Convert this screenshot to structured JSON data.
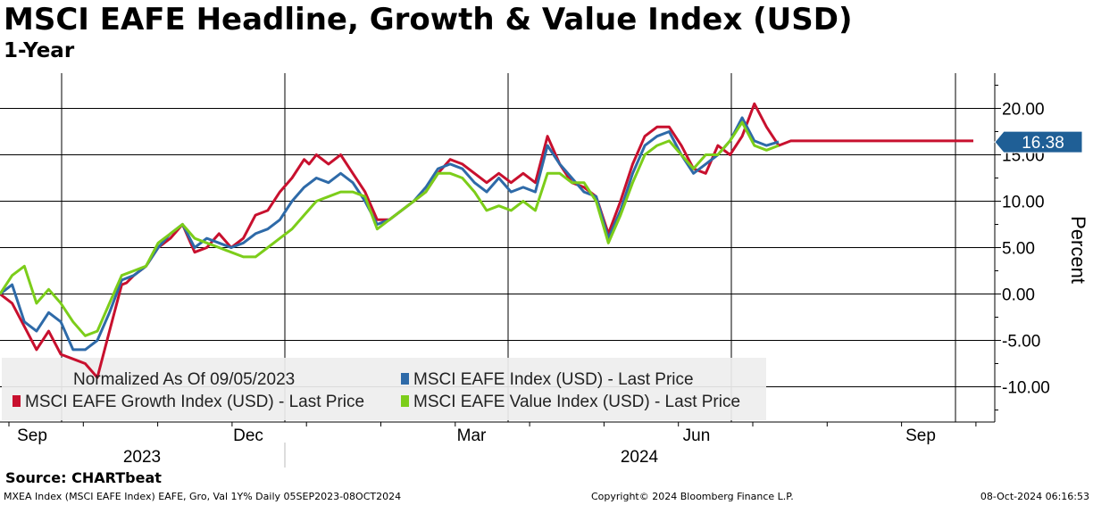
{
  "chart_data": {
    "type": "line",
    "title": "MSCI EAFE Headline, Growth & Value Index (USD)",
    "subtitle": "1-Year",
    "ylabel": "Percent",
    "ylim": [
      -13.5,
      23.5
    ],
    "yticks": [
      20,
      15,
      10,
      5,
      0,
      -5,
      -10
    ],
    "ytick_labels": [
      "20.00",
      "15.00",
      "10.00",
      "5.00",
      "0.00",
      "-5.00",
      "-10.00"
    ],
    "x_months": [
      "Sep",
      "Dec",
      "Mar",
      "Jun",
      "Sep"
    ],
    "x_years": [
      "2023",
      "2024"
    ],
    "x_range": [
      "2023-09-05",
      "2024-10-08"
    ],
    "last_value_label": "16.38",
    "legend": {
      "header": "Normalized As Of 09/05/2023",
      "placement": "bottom-left"
    },
    "series": [
      {
        "name": "MSCI EAFE Growth Index (USD) - Last Price",
        "color": "#c8102e",
        "x": [
          0,
          5,
          10,
          15,
          20,
          25,
          30,
          35,
          40,
          45,
          50,
          52,
          55,
          60,
          65,
          70,
          75,
          80,
          85,
          90,
          95,
          100,
          105,
          110,
          115,
          120,
          125,
          127,
          130,
          135,
          140,
          145,
          150,
          155,
          160,
          165,
          170,
          175,
          180,
          185,
          190,
          195,
          200,
          205,
          210,
          215,
          220,
          225,
          230,
          235,
          240,
          245,
          250,
          255,
          260,
          265,
          270,
          275,
          280,
          285,
          290,
          295,
          300,
          305,
          310,
          315,
          320,
          325,
          330,
          335,
          340,
          345,
          350,
          355,
          360,
          365,
          370,
          375,
          380,
          385,
          390,
          395,
          400
        ],
        "values": [
          0,
          -1,
          -3.5,
          -6,
          -4,
          -6.5,
          -7,
          -7.5,
          -9,
          -4,
          1,
          1.2,
          2,
          3,
          5,
          6,
          7.5,
          4.5,
          5,
          6.5,
          5,
          6,
          8.5,
          9,
          11,
          12.5,
          14.5,
          14,
          15,
          14,
          15,
          13,
          11,
          8,
          8,
          9,
          10,
          11,
          13,
          14.5,
          14,
          13,
          12,
          13,
          12,
          13,
          12,
          17,
          14,
          12,
          11.5,
          10.5,
          6.5,
          10,
          14,
          17,
          18,
          18,
          16,
          13.5,
          13,
          16,
          15,
          17,
          20.5,
          18,
          16,
          16.5,
          16.5,
          16.5,
          16.5,
          16.5,
          16.5,
          16.5,
          16.5,
          16.5,
          16.5,
          16.5,
          16.5,
          16.5,
          16.5,
          16.5,
          16.5
        ]
      },
      {
        "name": "MSCI EAFE Index (USD) - Last Price",
        "color": "#2e6aa8",
        "x": [
          0,
          5,
          10,
          15,
          20,
          25,
          30,
          35,
          40,
          45,
          50,
          55,
          60,
          65,
          70,
          75,
          80,
          85,
          90,
          95,
          100,
          105,
          110,
          115,
          120,
          125,
          130,
          135,
          140,
          145,
          150,
          155,
          160,
          165,
          170,
          175,
          180,
          185,
          190,
          195,
          200,
          205,
          210,
          215,
          220,
          225,
          230,
          235,
          240,
          245,
          250,
          255,
          260,
          265,
          270,
          275,
          280,
          285,
          290,
          295,
          300,
          305,
          310,
          315,
          320
        ],
        "values": [
          0,
          1,
          -3,
          -4,
          -2,
          -3,
          -6,
          -6,
          -5,
          -2,
          1.5,
          2,
          3,
          5,
          6.5,
          7.5,
          5,
          6,
          5.5,
          5,
          5.5,
          6.5,
          7,
          8,
          10,
          11.5,
          12.5,
          12,
          13,
          12,
          10,
          7.5,
          8,
          9,
          10,
          11.5,
          13.5,
          14,
          13.5,
          12,
          11,
          12.5,
          11,
          11.5,
          11,
          16,
          14,
          12.5,
          11,
          10.5,
          6,
          9,
          13,
          16,
          17,
          17.5,
          15,
          13,
          14,
          15,
          16.5,
          19,
          16.5,
          16,
          16.4
        ]
      },
      {
        "name": "MSCI EAFE Value Index (USD) - Last Price",
        "color": "#7ccd1a",
        "x": [
          0,
          5,
          10,
          15,
          20,
          25,
          30,
          35,
          40,
          45,
          50,
          55,
          60,
          65,
          70,
          75,
          80,
          85,
          90,
          95,
          100,
          105,
          110,
          115,
          120,
          125,
          130,
          135,
          140,
          145,
          150,
          155,
          160,
          165,
          170,
          175,
          180,
          185,
          190,
          195,
          200,
          205,
          210,
          215,
          220,
          225,
          230,
          235,
          240,
          245,
          250,
          255,
          260,
          265,
          270,
          275,
          280,
          285,
          290,
          295,
          300,
          305,
          310,
          315,
          320
        ],
        "values": [
          0,
          2,
          3,
          -1,
          0.5,
          -1,
          -3,
          -4.5,
          -4,
          -1,
          2,
          2.5,
          3,
          5.5,
          6.5,
          7.5,
          6,
          5.5,
          5,
          4.5,
          4,
          4,
          5,
          6,
          7,
          8.5,
          10,
          10.5,
          11,
          11,
          10.5,
          7,
          8,
          9,
          10,
          11,
          13,
          13,
          12.5,
          11,
          9,
          9.5,
          9,
          10,
          9,
          13,
          13,
          12,
          12,
          10,
          5.5,
          8.5,
          12,
          15,
          16,
          16.5,
          15,
          13.5,
          15,
          15,
          16.5,
          18.5,
          16,
          15.5,
          16
        ]
      }
    ],
    "legend_order": [
      "MSCI EAFE Growth Index (USD) - Last Price",
      "MSCI EAFE Index (USD) - Last Price",
      "MSCI EAFE Value Index (USD) - Last Price"
    ]
  },
  "footer": {
    "source": "Source: CHARTbeat",
    "ticker": "MXEA Index (MSCI EAFE Index) EAFE, Gro, Val 1Y%  Daily 05SEP2023-08OCT2024",
    "copyright": "Copyright© 2024 Bloomberg Finance L.P.",
    "timestamp": "08-Oct-2024 06:16:53"
  }
}
